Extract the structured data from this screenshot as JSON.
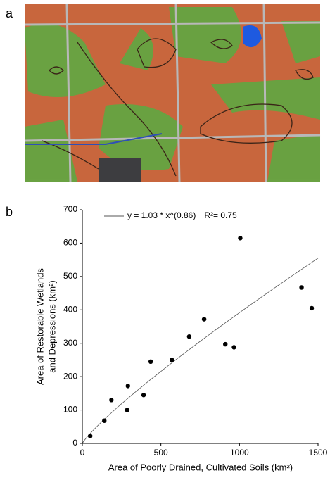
{
  "panel_labels": [
    "a",
    "b"
  ],
  "chart_data": {
    "type": "scatter",
    "x_label": "Area of Poorly Drained, Cultivated Soils (km²)",
    "y_label": [
      "Area of Restorable Wetlands",
      "and Depressions (km²)"
    ],
    "fit_label": "y = 1.03 * x^(0.86)",
    "annotation": "R²= 0.75",
    "legend": "upper left",
    "color": "#000000",
    "x": [
      50,
      140,
      185,
      285,
      290,
      390,
      435,
      570,
      680,
      775,
      910,
      965,
      1005,
      1395,
      1460
    ],
    "values": [
      22,
      68,
      130,
      100,
      172,
      145,
      245,
      250,
      320,
      372,
      297,
      288,
      615,
      467,
      405
    ],
    "xlim": [
      0,
      1500
    ],
    "xticks": [
      0,
      500,
      1000,
      1500
    ],
    "ylim": [
      0,
      700
    ],
    "yticks": [
      0,
      100,
      200,
      300,
      400,
      500,
      600,
      700
    ]
  }
}
